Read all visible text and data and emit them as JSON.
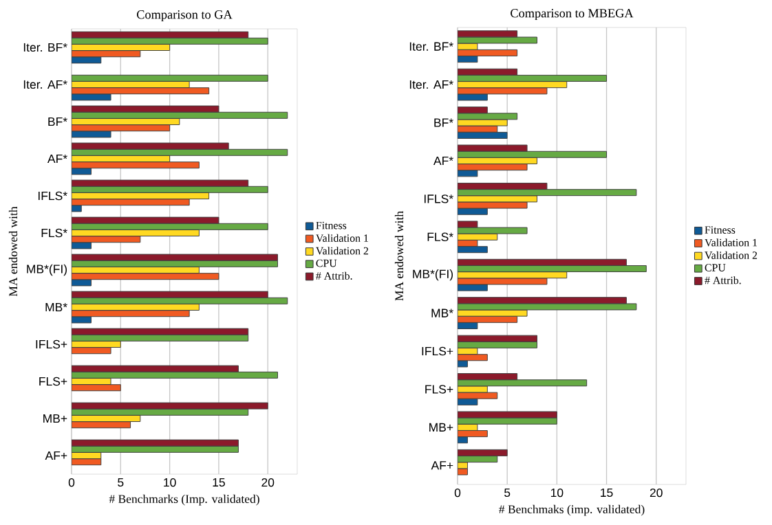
{
  "chart_data": [
    {
      "type": "bar",
      "orientation": "horizontal",
      "title": "Comparison to GA",
      "xlabel": "# Benchmarks (Imp. validated)",
      "ylabel": "MA endowed with",
      "categories": [
        "Iter. BF*",
        "Iter. AF*",
        "BF*",
        "AF*",
        "IFLS*",
        "FLS*",
        "MB*(FI)",
        "MB*",
        "IFLS+",
        "FLS+",
        "MB+",
        "AF+"
      ],
      "series": [
        {
          "name": "Fitness",
          "color": "#0f5a96",
          "values": [
            3,
            4,
            4,
            2,
            1,
            2,
            2,
            2,
            null,
            null,
            null,
            null
          ]
        },
        {
          "name": "Validation 1",
          "color": "#f05a22",
          "values": [
            7,
            14,
            10,
            13,
            12,
            7,
            15,
            12,
            4,
            5,
            6,
            3
          ]
        },
        {
          "name": "Validation 2",
          "color": "#ffd922",
          "values": [
            10,
            12,
            11,
            10,
            14,
            13,
            13,
            13,
            5,
            4,
            7,
            3
          ]
        },
        {
          "name": "CPU",
          "color": "#66aa44",
          "values": [
            20,
            20,
            22,
            22,
            20,
            20,
            21,
            22,
            18,
            21,
            18,
            17
          ]
        },
        {
          "name": "# Attrib.",
          "color": "#8b1a2b",
          "values": [
            18,
            null,
            15,
            16,
            18,
            15,
            21,
            20,
            18,
            17,
            20,
            17
          ]
        }
      ],
      "xlim": [
        0,
        23
      ],
      "xticks": [
        0,
        5,
        10,
        15,
        20
      ],
      "grid": "x",
      "legend": "right"
    },
    {
      "type": "bar",
      "orientation": "horizontal",
      "title": "Comparison to MBEGA",
      "xlabel": "# Benchmaks (imp. validated)",
      "ylabel": "MA endowed with",
      "categories": [
        "Iter. BF*",
        "Iter. AF*",
        "BF*",
        "AF*",
        "IFLS*",
        "FLS*",
        "MB*(FI)",
        "MB*",
        "IFLS+",
        "FLS+",
        "MB+",
        "AF+"
      ],
      "series": [
        {
          "name": "Fitness",
          "color": "#0f5a96",
          "values": [
            2,
            3,
            5,
            2,
            3,
            3,
            3,
            2,
            1,
            2,
            1,
            null
          ]
        },
        {
          "name": "Validation 1",
          "color": "#f05a22",
          "values": [
            6,
            9,
            4,
            7,
            7,
            2,
            9,
            6,
            3,
            4,
            3,
            1
          ]
        },
        {
          "name": "Validation 2",
          "color": "#ffd922",
          "values": [
            2,
            11,
            5,
            8,
            8,
            4,
            11,
            7,
            2,
            3,
            2,
            1
          ]
        },
        {
          "name": "CPU",
          "color": "#66aa44",
          "values": [
            8,
            15,
            6,
            15,
            18,
            7,
            19,
            18,
            8,
            13,
            10,
            4
          ]
        },
        {
          "name": "# Attrib.",
          "color": "#8b1a2b",
          "values": [
            6,
            6,
            3,
            7,
            9,
            2,
            17,
            17,
            8,
            6,
            10,
            5
          ]
        }
      ],
      "xlim": [
        0,
        23
      ],
      "xticks": [
        0,
        5,
        10,
        15,
        20
      ],
      "grid": "x",
      "legend": "right"
    }
  ]
}
